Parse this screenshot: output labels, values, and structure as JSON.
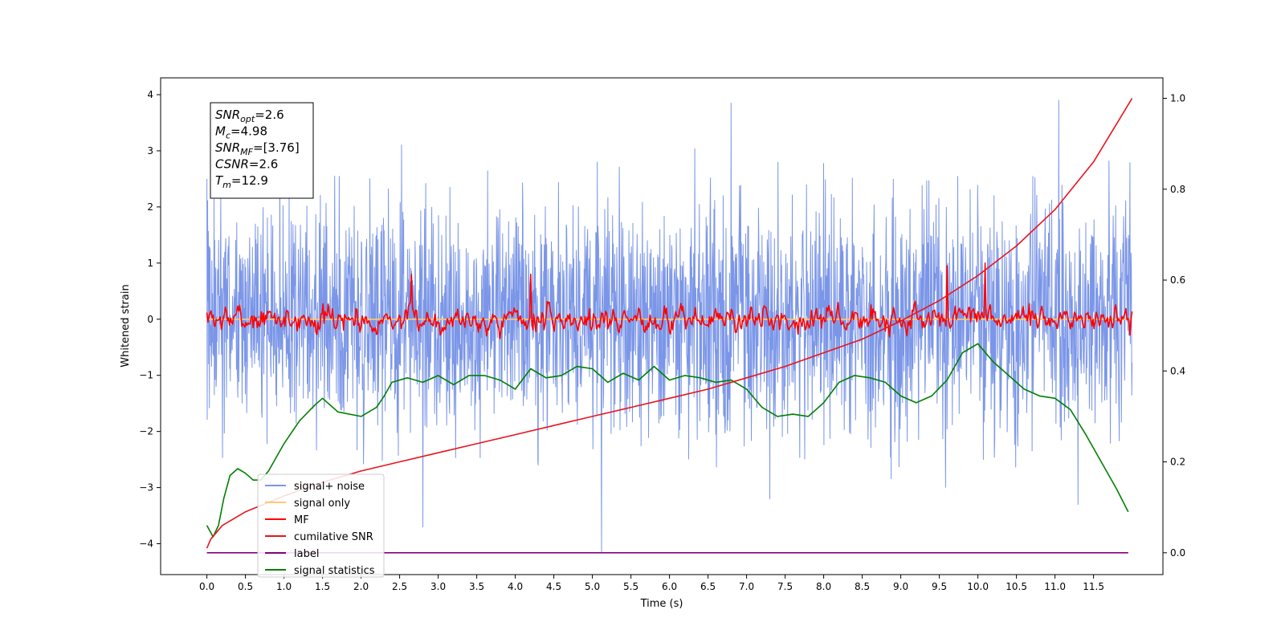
{
  "chart_data": {
    "type": "line",
    "title": "",
    "xlabel": "Time (s)",
    "ylabel": "Whitened strain",
    "xlim": [
      -0.6,
      12.4
    ],
    "ylim": [
      -4.55,
      4.3
    ],
    "ylim_right": [
      -0.048,
      1.045
    ],
    "x_ticks": [
      0,
      0.5,
      1.0,
      1.5,
      2.0,
      2.5,
      3.0,
      3.5,
      4.0,
      4.5,
      5.0,
      5.5,
      6.0,
      6.5,
      7.0,
      7.5,
      8.0,
      8.5,
      9.0,
      9.5,
      10.0,
      10.5,
      11.0,
      11.5
    ],
    "x_tick_labels": [
      "0.0",
      "0.5",
      "1.0",
      "1.5",
      "2.0",
      "2.5",
      "3.0",
      "3.5",
      "4.0",
      "4.5",
      "5.0",
      "5.5",
      "6.0",
      "6.5",
      "7.0",
      "7.5",
      "8.0",
      "8.5",
      "9.0",
      "9.5",
      "10.0",
      "10.5",
      "11.0",
      "11.5"
    ],
    "y_ticks": [
      -4,
      -3,
      -2,
      -1,
      0,
      1,
      2,
      3,
      4
    ],
    "y_tick_labels": [
      "−4",
      "−3",
      "−2",
      "−1",
      "0",
      "1",
      "2",
      "3",
      "4"
    ],
    "y_right_ticks": [
      0.0,
      0.2,
      0.4,
      0.6,
      0.8,
      1.0
    ],
    "y_right_tick_labels": [
      "0.0",
      "0.2",
      "0.4",
      "0.6",
      "0.8",
      "1.0"
    ],
    "legend_position": "lower-left",
    "grid": false,
    "annotation": [
      {
        "main": "SNR",
        "sub": "opt",
        "rest": "=2.6"
      },
      {
        "main": "M",
        "sub": "c",
        "rest": "=4.98"
      },
      {
        "main": "SNR",
        "sub": "MF",
        "rest": "=[3.76]"
      },
      {
        "main": "CSNR",
        "sub": "",
        "rest": "=2.6"
      },
      {
        "main": "T",
        "sub": "m",
        "rest": "=12.9"
      }
    ],
    "series": [
      {
        "name": "signal+ noise",
        "color": "#7b96e8",
        "axis": "left",
        "style": "noise",
        "x_range": [
          0,
          12.0
        ],
        "amplitude": 1.0,
        "peaks": [
          [
            0.0,
            2.5
          ],
          [
            5.12,
            -4.15
          ],
          [
            6.8,
            3.85
          ],
          [
            11.05,
            3.9
          ],
          [
            11.3,
            -3.3
          ],
          [
            2.8,
            -3.7
          ],
          [
            7.3,
            -3.2
          ]
        ]
      },
      {
        "name": "signal only",
        "color": "#ffc872",
        "axis": "left",
        "style": "flat",
        "x": [
          0,
          12.0
        ],
        "y": [
          0.0,
          0.0
        ]
      },
      {
        "name": "MF",
        "color": "#ff0000",
        "axis": "left",
        "style": "noise",
        "x_range": [
          0,
          12.0
        ],
        "amplitude": 0.22,
        "peaks": [
          [
            9.6,
            0.95
          ],
          [
            10.1,
            1.0
          ],
          [
            2.65,
            0.8
          ],
          [
            4.2,
            0.8
          ]
        ]
      },
      {
        "name": "cumilative SNR",
        "color": "#e8141e",
        "axis": "right",
        "x": [
          0.0,
          0.05,
          0.2,
          0.5,
          1.0,
          1.5,
          2.0,
          2.5,
          3.0,
          3.5,
          4.0,
          4.5,
          5.0,
          5.5,
          6.0,
          6.5,
          7.0,
          7.5,
          8.0,
          8.5,
          9.0,
          9.5,
          10.0,
          10.5,
          11.0,
          11.5,
          12.0
        ],
        "y": [
          0.01,
          0.03,
          0.06,
          0.09,
          0.125,
          0.155,
          0.18,
          0.2,
          0.22,
          0.24,
          0.26,
          0.28,
          0.3,
          0.32,
          0.34,
          0.36,
          0.385,
          0.41,
          0.44,
          0.47,
          0.51,
          0.555,
          0.61,
          0.675,
          0.755,
          0.86,
          1.0
        ]
      },
      {
        "name": "label",
        "color": "#800080",
        "axis": "right",
        "x": [
          0,
          11.95
        ],
        "y": [
          0.0,
          0.0
        ]
      },
      {
        "name": "signal statistics",
        "color": "#008000",
        "axis": "right",
        "x": [
          0.0,
          0.08,
          0.15,
          0.22,
          0.3,
          0.4,
          0.5,
          0.6,
          0.7,
          0.8,
          1.0,
          1.2,
          1.4,
          1.5,
          1.7,
          2.0,
          2.2,
          2.3,
          2.4,
          2.6,
          2.8,
          3.0,
          3.2,
          3.4,
          3.6,
          3.8,
          4.0,
          4.2,
          4.4,
          4.6,
          4.8,
          5.0,
          5.2,
          5.4,
          5.6,
          5.8,
          6.0,
          6.2,
          6.4,
          6.6,
          6.8,
          7.0,
          7.2,
          7.4,
          7.6,
          7.8,
          8.0,
          8.2,
          8.4,
          8.6,
          8.8,
          9.0,
          9.2,
          9.4,
          9.6,
          9.8,
          9.9,
          10.0,
          10.2,
          10.4,
          10.6,
          10.8,
          11.0,
          11.2,
          11.4,
          11.6,
          11.8,
          11.95
        ],
        "y": [
          0.06,
          0.035,
          0.06,
          0.12,
          0.17,
          0.185,
          0.175,
          0.16,
          0.16,
          0.18,
          0.24,
          0.29,
          0.325,
          0.34,
          0.31,
          0.3,
          0.32,
          0.345,
          0.375,
          0.385,
          0.375,
          0.39,
          0.37,
          0.39,
          0.39,
          0.38,
          0.36,
          0.405,
          0.385,
          0.39,
          0.41,
          0.405,
          0.375,
          0.395,
          0.38,
          0.41,
          0.38,
          0.39,
          0.385,
          0.375,
          0.38,
          0.36,
          0.32,
          0.3,
          0.305,
          0.3,
          0.33,
          0.375,
          0.39,
          0.385,
          0.375,
          0.345,
          0.33,
          0.345,
          0.38,
          0.44,
          0.45,
          0.46,
          0.42,
          0.39,
          0.36,
          0.345,
          0.34,
          0.315,
          0.26,
          0.2,
          0.14,
          0.09
        ]
      }
    ]
  }
}
